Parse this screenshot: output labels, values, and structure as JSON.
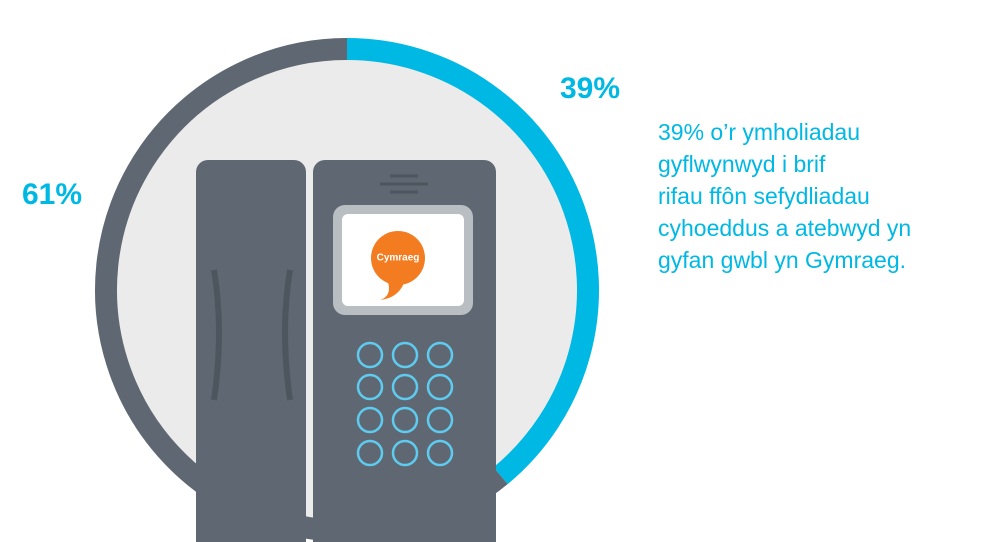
{
  "chart_data": {
    "type": "donut",
    "values": [
      39,
      61
    ],
    "value_labels": [
      "39%",
      "61%"
    ],
    "colors": [
      "#00b8e4",
      "#5f6872"
    ],
    "annotation_lines": [
      "39% o’r ymholiadau",
      "gyflwynwyd i brif",
      "rifau ffôn sefydliadau",
      "cyhoeddus a atebwyd yn",
      "gyfan gwbl yn Gymraeg."
    ]
  },
  "phone": {
    "screen_label": "Cymraeg"
  }
}
